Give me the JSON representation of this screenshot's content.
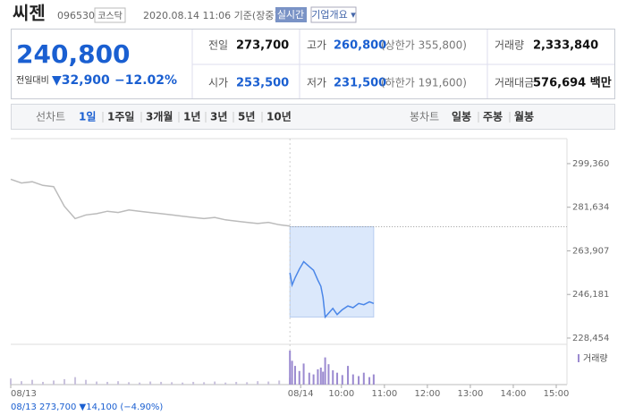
{
  "header": {
    "title": "씨젠",
    "code": "096530",
    "market": "코스닥",
    "timestamp": "2020.08.14 11:06 기준(장중)",
    "realtime": "실시간",
    "company": "기업개요 ▾"
  },
  "price": {
    "current": "240,800",
    "change_label": "전일대비",
    "change": "▼32,900",
    "change_pct": "−12.02%"
  },
  "info": {
    "rows": [
      [
        {
          "label": "전일",
          "value": "273,700"
        },
        {
          "label": "고가",
          "value": "260,800",
          "note": "(상한가 355,800)"
        },
        {
          "label": "거래량",
          "value": "2,333,840"
        }
      ],
      [
        {
          "label": "시가",
          "value": "253,500"
        },
        {
          "label": "저가",
          "value": "231,500",
          "note": "(하한가 191,600)"
        },
        {
          "label": "거래대금",
          "value": "576,694 백만"
        }
      ]
    ]
  },
  "tabs": {
    "line_label": "선차트",
    "line_tabs": [
      "1일",
      "1주일",
      "3개월",
      "1년",
      "3년",
      "5년",
      "10년"
    ],
    "candle_label": "봉차트",
    "candle_tabs": [
      "일봉",
      "주봉",
      "월봉"
    ]
  },
  "chart_data": {
    "type": "line",
    "xlim": [
      0,
      12.95
    ],
    "ylim": [
      225900,
      307700
    ],
    "yticks": [
      {
        "value": 299360,
        "label": "299,360"
      },
      {
        "value": 281634,
        "label": "281,634"
      },
      {
        "value": 263907,
        "label": "263,907"
      },
      {
        "value": 246181,
        "label": "246,181"
      },
      {
        "value": 228454,
        "label": "228,454"
      }
    ],
    "xticks": [
      {
        "value": 0,
        "label": "08/13"
      },
      {
        "value": 6.75,
        "label": "08/14"
      },
      {
        "value": 7.7,
        "label": "10:00"
      },
      {
        "value": 8.7,
        "label": "11:00"
      },
      {
        "value": 9.7,
        "label": "12:00"
      },
      {
        "value": 10.7,
        "label": "13:00"
      },
      {
        "value": 11.7,
        "label": "14:00"
      },
      {
        "value": 12.7,
        "label": "15:00"
      }
    ],
    "reference": 273700,
    "prev_summary": "08/13  273,700 ▼14,100 (−4.90%)",
    "series": [
      {
        "color": "#bbbbbb",
        "x": [
          0,
          0.25,
          0.5,
          0.75,
          1,
          1.25,
          1.5,
          1.75,
          2,
          2.25,
          2.5,
          2.75,
          3,
          3.25,
          3.5,
          3.75,
          4,
          4.25,
          4.5,
          4.75,
          5,
          5.25,
          5.5,
          5.75,
          6,
          6.25,
          6.5
        ],
        "values": [
          293000,
          291500,
          292000,
          290500,
          290000,
          282000,
          277000,
          278500,
          279000,
          280000,
          279500,
          280500,
          280000,
          279500,
          279000,
          278500,
          278000,
          277500,
          277000,
          277500,
          276500,
          276000,
          275500,
          275000,
          275500,
          274500,
          274000
        ],
        "volume": [
          18,
          10,
          14,
          8,
          12,
          16,
          22,
          14,
          9,
          8,
          10,
          7,
          6,
          9,
          8,
          7,
          6,
          8,
          7,
          9,
          6,
          8,
          7,
          10,
          9,
          12,
          20
        ]
      },
      {
        "color": "#4a86e8",
        "x": [
          6.5,
          6.55,
          6.62,
          6.72,
          6.82,
          6.95,
          7.05,
          7.15,
          7.22,
          7.27,
          7.32,
          7.4,
          7.5,
          7.6,
          7.72,
          7.85,
          7.97,
          8.1,
          8.22,
          8.35,
          8.45
        ],
        "values": [
          255000,
          250000,
          253000,
          256500,
          259500,
          257500,
          256000,
          252000,
          249500,
          245000,
          237000,
          238500,
          240500,
          238000,
          240000,
          241500,
          240800,
          242500,
          242000,
          243200,
          242500
        ],
        "volume": [
          100,
          70,
          55,
          40,
          62,
          35,
          30,
          45,
          50,
          38,
          80,
          60,
          42,
          35,
          28,
          55,
          30,
          25,
          35,
          22,
          30
        ]
      }
    ],
    "vlim": [
      0,
      100
    ],
    "volume_label": "거래량"
  }
}
